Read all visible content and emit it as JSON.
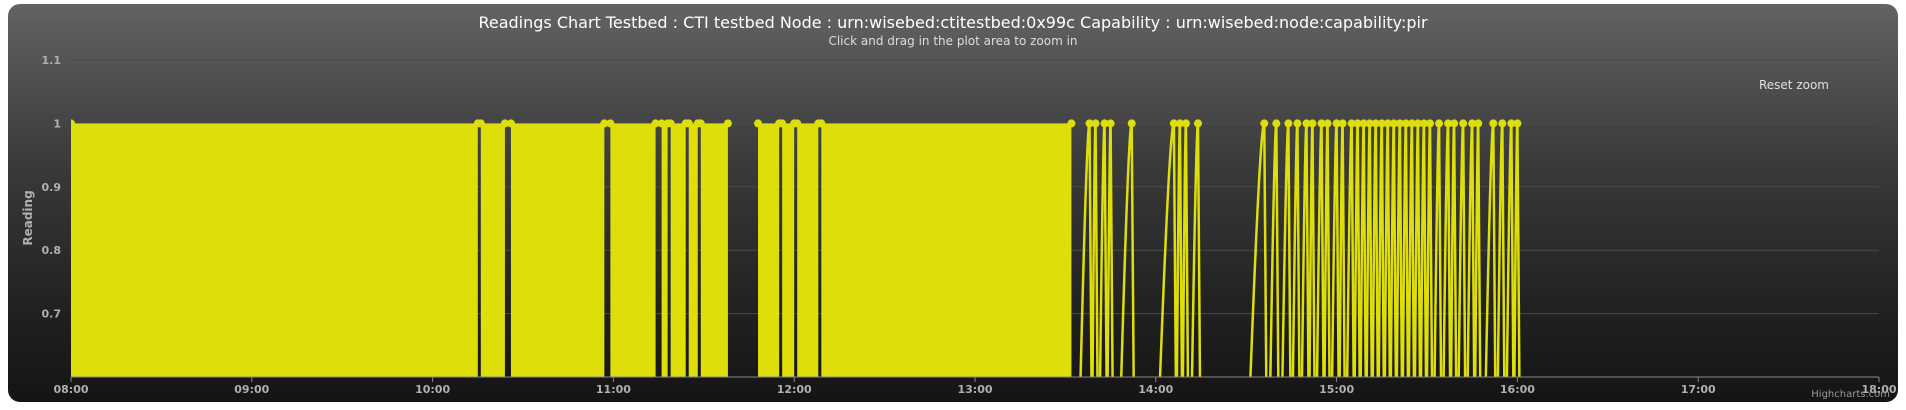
{
  "chart_data": {
    "type": "line",
    "title": "Readings Chart Testbed : CTI testbed Node : urn:wisebed:ctitestbed:0x99c Capability : urn:wisebed:node:capability:pir",
    "subtitle": "Click and drag in the plot area to zoom in",
    "ylabel": "Reading",
    "xlabel": "",
    "xlim": [
      "08:00",
      "18:00"
    ],
    "ylim": [
      0.6,
      1.1
    ],
    "x_ticks": [
      "08:00",
      "09:00",
      "10:00",
      "11:00",
      "12:00",
      "13:00",
      "14:00",
      "15:00",
      "16:00",
      "17:00",
      "18:00"
    ],
    "y_ticks": [
      "0.7",
      "0.8",
      "0.9",
      "1",
      "1.1"
    ],
    "grid": true,
    "legend": "none",
    "series": [
      {
        "color": "#dede0a",
        "values_note_free": true,
        "dense_segments": [
          {
            "start": "08:00",
            "end": "10:15"
          },
          {
            "start": "10:16",
            "end": "10:24"
          },
          {
            "start": "10:26",
            "end": "10:57"
          },
          {
            "start": "10:59",
            "end": "11:14"
          },
          {
            "start": "11:16",
            "end": "11:18"
          },
          {
            "start": "11:19",
            "end": "11:24"
          },
          {
            "start": "11:25",
            "end": "11:28"
          },
          {
            "start": "11:29",
            "end": "11:38"
          },
          {
            "start": "11:48",
            "end": "11:55"
          },
          {
            "start": "11:56",
            "end": "12:00"
          },
          {
            "start": "12:01",
            "end": "12:08"
          },
          {
            "start": "12:09",
            "end": "13:32"
          }
        ],
        "spikes": [
          "13:38",
          "13:40",
          "13:43",
          "13:45",
          "13:52",
          "14:06",
          "14:08",
          "14:10",
          "14:14",
          "14:36",
          "14:40",
          "14:44",
          "14:47",
          "14:50",
          "14:52",
          "14:55",
          "14:57",
          "15:00",
          "15:02",
          "15:05",
          "15:07",
          "15:09",
          "15:11",
          "15:13",
          "15:15",
          "15:17",
          "15:19",
          "15:21",
          "15:23",
          "15:25",
          "15:27",
          "15:29",
          "15:31",
          "15:34",
          "15:37",
          "15:39",
          "15:42",
          "15:45",
          "15:47",
          "15:52",
          "15:55",
          "15:58",
          "16:00"
        ],
        "low_value": 0.6,
        "high_value": 1.0
      }
    ],
    "colors": {
      "series": "#dede0a",
      "background_top": "#636363",
      "background_bottom": "#141414",
      "grid": "#4a4a4a"
    }
  },
  "ui": {
    "reset_zoom_label": "Reset zoom",
    "credits": "Highcharts.com"
  }
}
